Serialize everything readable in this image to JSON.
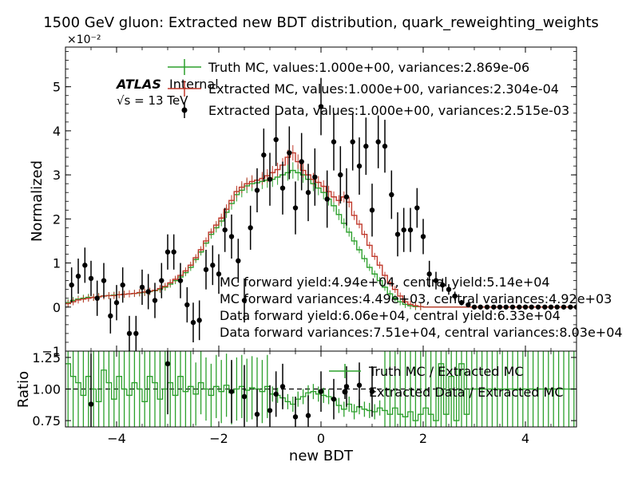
{
  "figure": {
    "title": "1500 GeV gluon: Extracted new BDT distribution, quark_reweighting_weights"
  },
  "colors": {
    "truth": "#2ca02c",
    "extracted": "#c0392b",
    "data": "#000000"
  },
  "chart_data": [
    {
      "type": "line",
      "panel": "main",
      "xlabel": "",
      "ylabel": "Normalized",
      "xlim": [
        -5,
        5
      ],
      "ylim": [
        -0.01,
        0.059
      ],
      "y_multiplier_label": "×10⁻²",
      "y_ticks": [
        {
          "value": -0.01,
          "label": "−1"
        },
        {
          "value": 0.0,
          "label": "0"
        },
        {
          "value": 0.01,
          "label": "1"
        },
        {
          "value": 0.02,
          "label": "2"
        },
        {
          "value": 0.03,
          "label": "3"
        },
        {
          "value": 0.04,
          "label": "4"
        },
        {
          "value": 0.05,
          "label": "5"
        }
      ],
      "legend": [
        "Truth MC, values:1.000e+00, variances:2.869e-06",
        "Extracted MC, values:1.000e+00, variances:2.304e-04",
        "Extracted Data, values:1.000e+00, variances:2.515e-03"
      ],
      "legend_placement": "top-right",
      "atlas_label": {
        "bold": "ATLAS",
        "rest": "Internal",
        "energy": "√s = 13 TeV"
      },
      "annotations": [
        "MC forward yield:4.94e+04, central yield:5.14e+04",
        "MC forward variances:4.49e+03, central variances:4.92e+03",
        "Data forward yield:6.06e+04, central yield:6.33e+04",
        "Data forward variances:7.51e+04, central variances:8.03e+04"
      ],
      "bin_edges_range": [
        -5,
        5
      ],
      "n_bins": 100,
      "series": [
        {
          "name": "Truth MC",
          "style": "step",
          "values": [
            0.001,
            0.0015,
            0.0018,
            0.002,
            0.0022,
            0.0022,
            0.0024,
            0.0025,
            0.0026,
            0.0027,
            0.0028,
            0.0029,
            0.003,
            0.0031,
            0.0032,
            0.0033,
            0.0035,
            0.0037,
            0.004,
            0.0045,
            0.0052,
            0.006,
            0.0068,
            0.0078,
            0.009,
            0.0108,
            0.0125,
            0.0145,
            0.0165,
            0.018,
            0.0195,
            0.0215,
            0.0235,
            0.0255,
            0.0265,
            0.0275,
            0.028,
            0.0282,
            0.0285,
            0.0288,
            0.029,
            0.0295,
            0.03,
            0.0305,
            0.031,
            0.0305,
            0.03,
            0.029,
            0.028,
            0.027,
            0.026,
            0.0245,
            0.023,
            0.021,
            0.019,
            0.017,
            0.015,
            0.013,
            0.011,
            0.009,
            0.0075,
            0.006,
            0.0045,
            0.003,
            0.002,
            0.0012,
            0.0006,
            0.0003,
            0.0001,
            0.0001,
            0,
            0,
            0,
            0,
            0,
            0,
            0,
            0,
            0,
            0,
            0,
            0,
            0,
            0,
            0,
            0,
            0,
            0,
            0,
            0,
            0,
            0,
            0,
            0,
            0,
            0,
            0,
            0,
            0,
            0
          ]
        },
        {
          "name": "Extracted MC",
          "style": "step",
          "values": [
            0.0008,
            0.0012,
            0.0016,
            0.0018,
            0.002,
            0.0022,
            0.0023,
            0.0025,
            0.0026,
            0.0026,
            0.0028,
            0.0029,
            0.003,
            0.0031,
            0.0033,
            0.0034,
            0.0036,
            0.0038,
            0.0042,
            0.0047,
            0.0055,
            0.0063,
            0.0072,
            0.0082,
            0.0095,
            0.0112,
            0.013,
            0.015,
            0.017,
            0.0186,
            0.0202,
            0.0222,
            0.0242,
            0.0262,
            0.0272,
            0.028,
            0.0285,
            0.0288,
            0.0292,
            0.0298,
            0.0305,
            0.0312,
            0.0322,
            0.034,
            0.035,
            0.033,
            0.031,
            0.03,
            0.029,
            0.0283,
            0.0274,
            0.0262,
            0.025,
            0.0242,
            0.025,
            0.0238,
            0.0208,
            0.0188,
            0.0165,
            0.014,
            0.0115,
            0.0095,
            0.0072,
            0.0055,
            0.004,
            0.0025,
            0.0012,
            0.0006,
            0.0003,
            0.0001,
            0,
            0,
            0,
            0,
            0,
            0,
            0,
            0,
            0,
            0,
            0,
            0,
            0,
            0,
            0,
            0,
            0,
            0,
            0,
            0,
            0,
            0,
            0,
            0,
            0,
            0,
            0,
            0,
            0,
            0
          ]
        },
        {
          "name": "Extracted Data",
          "style": "errorbar",
          "x": [
            -4.88,
            -4.75,
            -4.62,
            -4.5,
            -4.38,
            -4.25,
            -4.12,
            -4.0,
            -3.88,
            -3.75,
            -3.62,
            -3.5,
            -3.38,
            -3.25,
            -3.12,
            -3.0,
            -2.88,
            -2.75,
            -2.62,
            -2.5,
            -2.38,
            -2.25,
            -2.12,
            -2.0,
            -1.88,
            -1.75,
            -1.62,
            -1.5,
            -1.38,
            -1.25,
            -1.12,
            -1.0,
            -0.88,
            -0.75,
            -0.62,
            -0.5,
            -0.38,
            -0.25,
            -0.12,
            0.0,
            0.12,
            0.25,
            0.38,
            0.5,
            0.62,
            0.75,
            0.88,
            1.0,
            1.12,
            1.25,
            1.38,
            1.5,
            1.62,
            1.75,
            1.88,
            2.0,
            2.12,
            2.25,
            2.38,
            2.5,
            2.62,
            2.75,
            2.88,
            3.0,
            3.12,
            3.25,
            3.38,
            3.5,
            3.62,
            3.75,
            3.88,
            4.0,
            4.12,
            4.25,
            4.38,
            4.5,
            4.62,
            4.75,
            4.88,
            5.0
          ],
          "y": [
            0.005,
            0.007,
            0.0095,
            0.0065,
            0.002,
            0.006,
            -0.002,
            0.001,
            0.005,
            -0.006,
            -0.006,
            0.0045,
            0.0035,
            0.0015,
            0.006,
            0.0125,
            0.0125,
            0.006,
            0.0005,
            -0.0035,
            -0.003,
            0.0085,
            0.0095,
            0.0075,
            0.0175,
            0.016,
            0.0105,
            0.0015,
            0.018,
            0.0265,
            0.0345,
            0.029,
            0.038,
            0.027,
            0.035,
            0.0225,
            0.033,
            0.026,
            0.0295,
            0.0455,
            0.0245,
            0.0375,
            0.03,
            0.025,
            0.0375,
            0.032,
            0.0365,
            0.022,
            0.0375,
            0.0365,
            0.0255,
            0.0165,
            0.0175,
            0.0175,
            0.0225,
            0.016,
            0.0075,
            0.006,
            0.005,
            0.004,
            0.0025,
            0.001,
            0.0005,
            0,
            0,
            0,
            0,
            0,
            0,
            0,
            0,
            0,
            0,
            0,
            0,
            0,
            0,
            0,
            0,
            0
          ],
          "yerr": [
            0.004,
            0.004,
            0.004,
            0.004,
            0.004,
            0.004,
            0.004,
            0.004,
            0.004,
            0.004,
            0.004,
            0.004,
            0.004,
            0.004,
            0.004,
            0.004,
            0.004,
            0.004,
            0.004,
            0.0045,
            0.0045,
            0.0045,
            0.0045,
            0.0045,
            0.005,
            0.005,
            0.005,
            0.005,
            0.005,
            0.005,
            0.006,
            0.006,
            0.006,
            0.006,
            0.006,
            0.006,
            0.0065,
            0.0065,
            0.0065,
            0.0065,
            0.0065,
            0.0065,
            0.0065,
            0.0065,
            0.0065,
            0.0065,
            0.0065,
            0.006,
            0.006,
            0.006,
            0.0055,
            0.005,
            0.005,
            0.005,
            0.0045,
            0.004,
            0.003,
            0.002,
            0.0015,
            0.0012,
            0.001,
            0.0006,
            0.0004,
            0.0002,
            0.0001,
            0.0001,
            0.0001,
            0.0001,
            0.0001,
            0.0001,
            0.0001,
            0.0001,
            0.0001,
            0.0001,
            0.0001,
            0.0001,
            0.0001,
            0.0001,
            0.0001,
            0.0001
          ]
        }
      ]
    },
    {
      "type": "line",
      "panel": "ratio",
      "xlabel": "new BDT",
      "ylabel": "Ratio",
      "xlim": [
        -5,
        5
      ],
      "ylim": [
        0.7,
        1.3
      ],
      "x_ticks": [
        -4,
        -2,
        0,
        2,
        4
      ],
      "y_ticks": [
        0.75,
        1.0,
        1.25
      ],
      "reference_line": 1.0,
      "legend": [
        "Truth MC / Extracted MC",
        "Extracted Data / Extracted MC"
      ],
      "legend_placement": "top-right",
      "series": [
        {
          "name": "Truth MC / Extracted MC",
          "style": "step",
          "values": [
            1.2,
            1.1,
            1.05,
            0.95,
            1.1,
            1.0,
            0.9,
            1.15,
            1.05,
            0.92,
            1.1,
            1.0,
            0.95,
            1.05,
            1.0,
            0.9,
            1.1,
            1.05,
            0.92,
            1.0,
            1.05,
            0.95,
            1.1,
            0.98,
            1.02,
            0.96,
            1.05,
            1.0,
            0.95,
            1.02,
            0.98,
            1.03,
            0.97,
            1.0,
            1.02,
            0.99,
            1.01,
            1.0,
            0.98,
            1.02,
            0.96,
            0.95,
            0.93,
            0.9,
            0.88,
            0.92,
            0.94,
            0.97,
            0.98,
            0.96,
            0.95,
            0.94,
            0.92,
            0.87,
            0.84,
            0.88,
            0.82,
            0.86,
            0.84,
            0.83,
            0.82,
            0.85,
            0.83,
            0.8,
            0.85,
            0.8,
            0.78,
            0.82,
            0.75,
            0.8,
            0.85,
            0.8,
            0.75,
            1.2,
            0.8,
            1.1,
            0.75,
            1.2,
            0.8,
            1.0,
            1.0,
            1.0,
            1.0,
            1.0,
            1.0,
            1.0,
            1.0,
            1.0,
            1.0,
            1.0,
            1.0,
            1.0,
            1.0,
            1.0,
            1.0,
            1.0,
            1.0,
            1.0,
            1.0,
            1.0
          ]
        },
        {
          "name": "Extracted Data / Extracted MC",
          "style": "errorbar",
          "x": [
            -4.5,
            -3.0,
            -1.75,
            -1.5,
            -1.25,
            -1.0,
            -0.88,
            -0.75,
            -0.5,
            -0.25,
            0.0,
            0.25,
            0.5,
            0.75,
            1.0
          ],
          "y": [
            0.88,
            1.2,
            0.98,
            0.94,
            0.8,
            0.83,
            0.96,
            1.02,
            0.78,
            0.79,
            0.98,
            0.92,
            1.02,
            1.03,
            0.98
          ],
          "yerr": [
            0.4,
            0.4,
            0.25,
            0.25,
            0.2,
            0.2,
            0.18,
            0.18,
            0.16,
            0.16,
            0.16,
            0.16,
            0.16,
            0.18,
            0.2
          ]
        }
      ]
    }
  ]
}
